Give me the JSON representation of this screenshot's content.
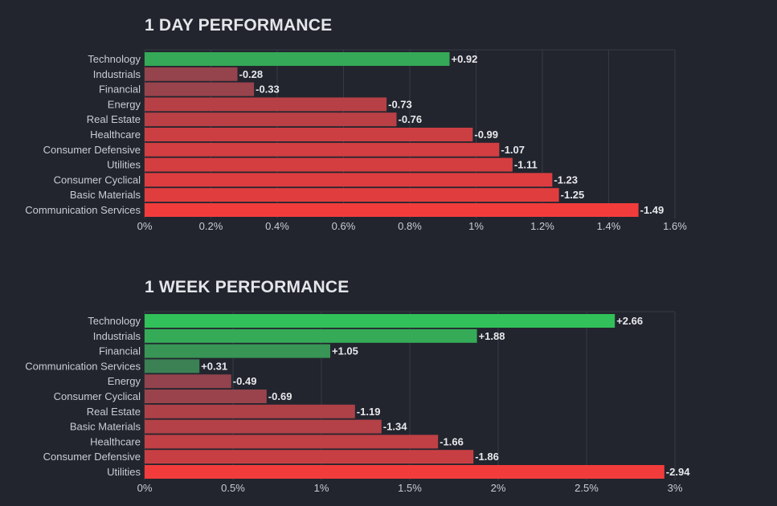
{
  "chart_data": [
    {
      "type": "bar",
      "orientation": "horizontal",
      "title": "1 DAY PERFORMANCE",
      "categories": [
        "Technology",
        "Industrials",
        "Financial",
        "Energy",
        "Real Estate",
        "Healthcare",
        "Consumer Defensive",
        "Utilities",
        "Consumer Cyclical",
        "Basic Materials",
        "Communication Services"
      ],
      "values": [
        0.92,
        -0.28,
        -0.33,
        -0.73,
        -0.76,
        -0.99,
        -1.07,
        -1.11,
        -1.23,
        -1.25,
        -1.49
      ],
      "value_labels": [
        "+0.92",
        "-0.28",
        "-0.33",
        "-0.73",
        "-0.76",
        "-0.99",
        "-1.07",
        "-1.11",
        "-1.23",
        "-1.25",
        "-1.49"
      ],
      "xlim": [
        0,
        1.6
      ],
      "ticks": [
        0,
        0.2,
        0.4,
        0.6,
        0.8,
        1,
        1.2,
        1.4,
        1.6
      ],
      "tick_labels": [
        "0%",
        "0.2%",
        "0.4%",
        "0.6%",
        "0.8%",
        "1%",
        "1.2%",
        "1.4%",
        "1.6%"
      ],
      "xlabel": "",
      "ylabel": "",
      "bar_length": "absolute value",
      "colors": {
        "positive": "#30c85a",
        "negative": "#f23c3c"
      }
    },
    {
      "type": "bar",
      "orientation": "horizontal",
      "title": "1 WEEK PERFORMANCE",
      "categories": [
        "Technology",
        "Industrials",
        "Financial",
        "Communication Services",
        "Energy",
        "Consumer Cyclical",
        "Real Estate",
        "Basic Materials",
        "Healthcare",
        "Consumer Defensive",
        "Utilities"
      ],
      "values": [
        2.66,
        1.88,
        1.05,
        0.31,
        -0.49,
        -0.69,
        -1.19,
        -1.34,
        -1.66,
        -1.86,
        -2.94
      ],
      "value_labels": [
        "+2.66",
        "+1.88",
        "+1.05",
        "+0.31",
        "-0.49",
        "-0.69",
        "-1.19",
        "-1.34",
        "-1.66",
        "-1.86",
        "-2.94"
      ],
      "xlim": [
        0,
        3
      ],
      "ticks": [
        0,
        0.5,
        1,
        1.5,
        2,
        2.5,
        3
      ],
      "tick_labels": [
        "0%",
        "0.5%",
        "1%",
        "1.5%",
        "2%",
        "2.5%",
        "3%"
      ],
      "xlabel": "",
      "ylabel": "",
      "bar_length": "absolute value",
      "colors": {
        "positive": "#30c85a",
        "negative": "#f23c3c"
      }
    }
  ],
  "theme": {
    "background": "#22252e",
    "text": "#c9ccd4",
    "title": "#e4e6ea",
    "grid": "#363a45",
    "label": "#e8e9ec"
  }
}
